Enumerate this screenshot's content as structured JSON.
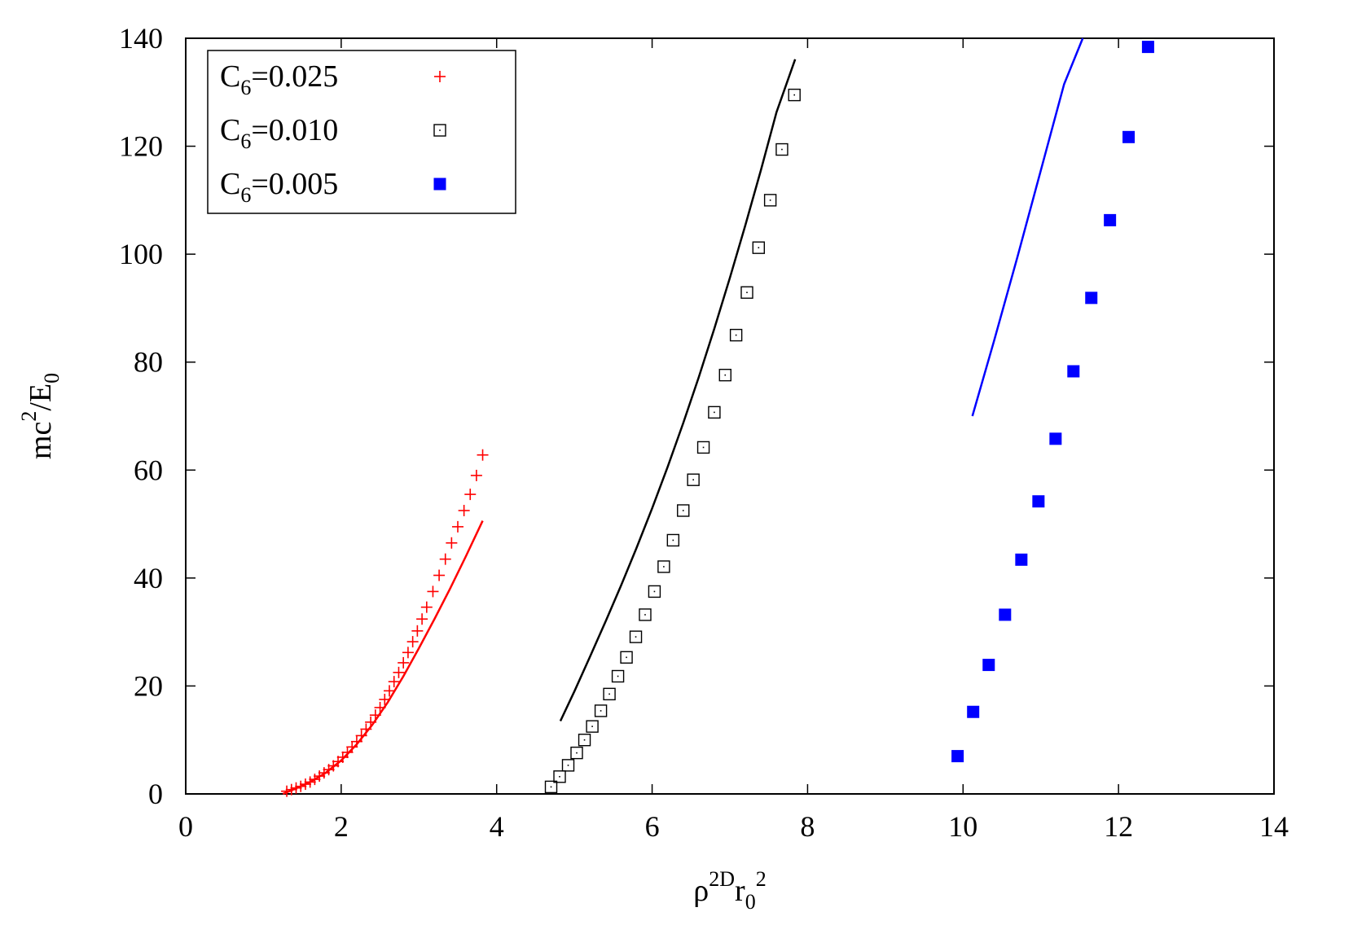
{
  "chart_data": {
    "type": "scatter",
    "xlabel": {
      "base": "ρ",
      "sup1": "2D",
      "mid": "r",
      "sub": "0",
      "sup2": "2"
    },
    "ylabel": {
      "pre": "mc",
      "sup": "2",
      "mid": "/E",
      "sub": "0"
    },
    "xlim": [
      0,
      14
    ],
    "ylim": [
      0,
      140
    ],
    "xticks": [
      0,
      2,
      4,
      6,
      8,
      10,
      12,
      14
    ],
    "yticks": [
      0,
      20,
      40,
      60,
      80,
      100,
      120,
      140
    ],
    "grid": false,
    "legend_position": "top-left",
    "series": [
      {
        "legend_base": "C",
        "legend_sub": "6",
        "legend_value": "=0.025",
        "marker": "plus",
        "color": "#ff0000",
        "x": [
          1.3,
          1.36,
          1.42,
          1.48,
          1.54,
          1.6,
          1.66,
          1.72,
          1.78,
          1.84,
          1.9,
          1.96,
          2.02,
          2.08,
          2.14,
          2.2,
          2.26,
          2.32,
          2.38,
          2.44,
          2.5,
          2.56,
          2.62,
          2.68,
          2.74,
          2.8,
          2.86,
          2.92,
          2.98,
          3.04,
          3.1,
          3.18,
          3.26,
          3.34,
          3.42,
          3.5,
          3.58,
          3.66,
          3.74,
          3.82
        ],
        "y": [
          0.5,
          0.8,
          1.1,
          1.4,
          1.8,
          2.2,
          2.7,
          3.3,
          3.9,
          4.5,
          5.2,
          6.0,
          6.8,
          7.7,
          8.7,
          9.7,
          10.8,
          12.0,
          13.3,
          14.6,
          16.0,
          17.5,
          19.1,
          20.8,
          22.5,
          24.3,
          26.2,
          28.2,
          30.2,
          32.4,
          34.6,
          37.5,
          40.5,
          43.5,
          46.5,
          49.5,
          52.5,
          55.5,
          59.0,
          62.8
        ]
      },
      {
        "legend_base": "C",
        "legend_sub": "6",
        "legend_value": "=0.010",
        "marker": "open-square",
        "color": "#000000",
        "x": [
          4.7,
          4.81,
          4.92,
          5.03,
          5.13,
          5.23,
          5.34,
          5.45,
          5.56,
          5.67,
          5.79,
          5.91,
          6.03,
          6.15,
          6.27,
          6.4,
          6.53,
          6.66,
          6.8,
          6.94,
          7.08,
          7.22,
          7.37,
          7.52,
          7.67,
          7.83
        ],
        "y": [
          1.3,
          3.2,
          5.3,
          7.6,
          10.0,
          12.5,
          15.4,
          18.5,
          21.8,
          25.3,
          29.1,
          33.2,
          37.5,
          42.1,
          47.0,
          52.5,
          58.2,
          64.2,
          70.7,
          77.6,
          85.0,
          92.9,
          101.2,
          110.0,
          119.4,
          129.5
        ]
      },
      {
        "legend_base": "C",
        "legend_sub": "6",
        "legend_value": "=0.005",
        "marker": "filled-square",
        "color": "#0000ff",
        "x": [
          9.93,
          10.13,
          10.33,
          10.54,
          10.75,
          10.97,
          11.19,
          11.42,
          11.65,
          11.89,
          12.13,
          12.38
        ],
        "y": [
          7.0,
          15.2,
          23.9,
          33.2,
          43.4,
          54.2,
          65.8,
          78.3,
          91.9,
          106.3,
          121.7,
          138.4
        ]
      }
    ],
    "lines": [
      {
        "color": "#ff0000",
        "x": [
          1.25,
          1.4,
          1.6,
          1.8,
          2.0,
          2.2,
          2.4,
          2.6,
          2.8,
          3.0,
          3.2,
          3.4,
          3.6,
          3.82
        ],
        "y": [
          0.0,
          0.9,
          2.2,
          3.9,
          6.2,
          9.2,
          12.8,
          17.0,
          21.8,
          27.0,
          32.4,
          38.0,
          43.9,
          50.6
        ]
      },
      {
        "color": "#000000",
        "x": [
          4.82,
          5.0,
          5.2,
          5.4,
          5.6,
          5.8,
          6.0,
          6.2,
          6.4,
          6.6,
          6.8,
          7.0,
          7.2,
          7.4,
          7.6,
          7.84
        ],
        "y": [
          13.5,
          19.0,
          25.4,
          31.9,
          38.6,
          45.6,
          52.9,
          60.6,
          68.7,
          77.2,
          86.2,
          95.6,
          105.4,
          115.6,
          126.3,
          136.1
        ]
      },
      {
        "color": "#0000ff",
        "x": [
          10.12,
          10.4,
          10.7,
          11.0,
          11.3,
          11.54
        ],
        "y": [
          70.0,
          84.0,
          99.5,
          115.5,
          131.5,
          140.0
        ]
      }
    ]
  }
}
